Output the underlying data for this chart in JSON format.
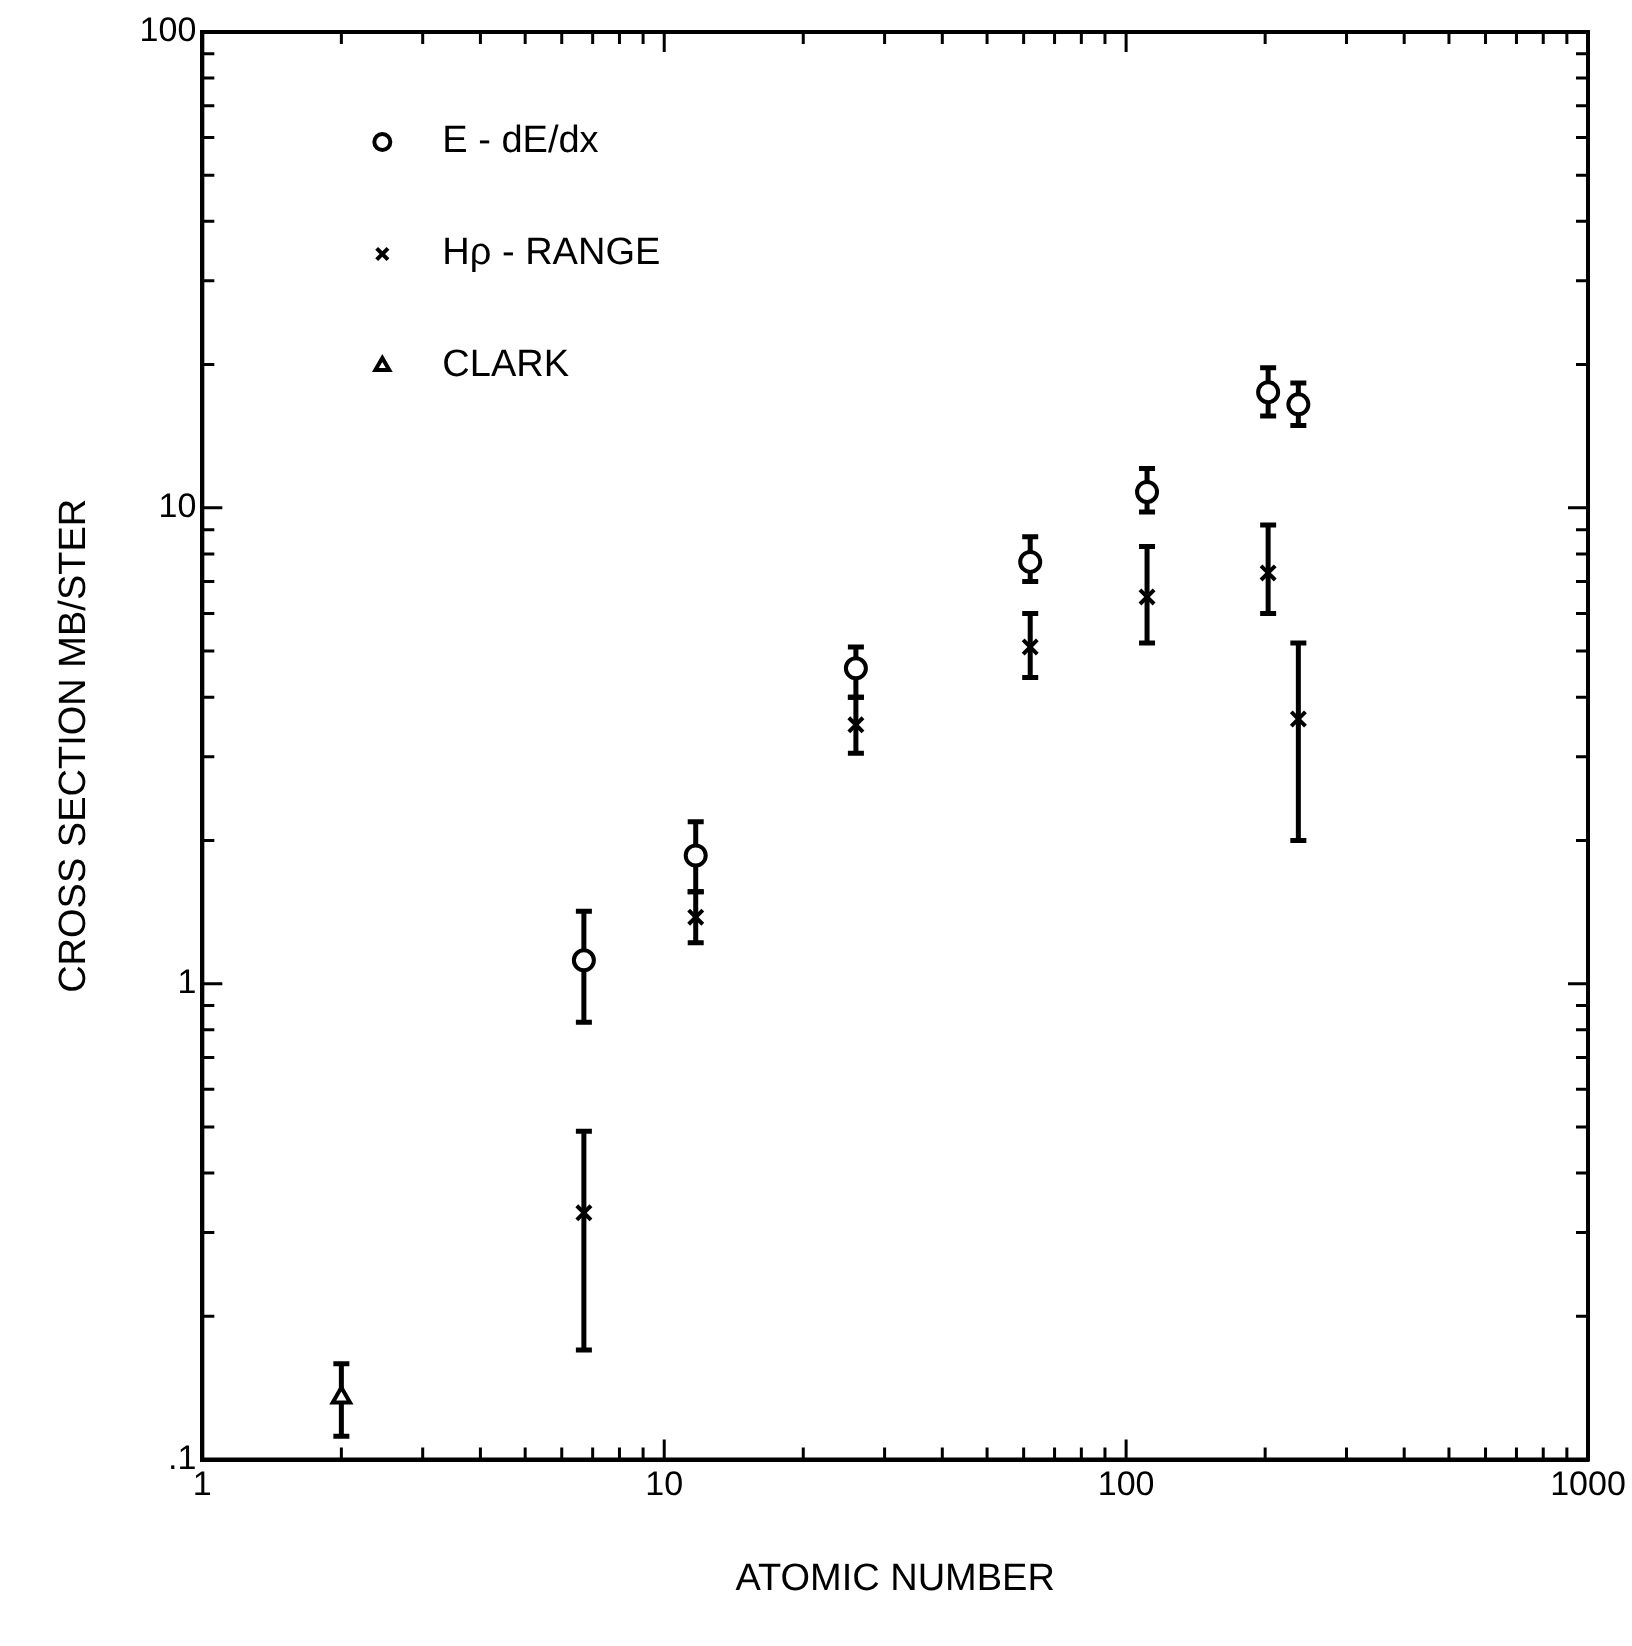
{
  "chart_data": {
    "type": "scatter",
    "xlabel": "ATOMIC NUMBER",
    "ylabel": "CROSS SECTION MB/STER",
    "log": "xy",
    "legend": "top left",
    "xlim": [
      1,
      1000
    ],
    "ylim": [
      0.1,
      100
    ],
    "xticks": [
      1,
      {
        "value": 2,
        "label": null
      },
      {
        "value": 3,
        "label": null
      },
      {
        "value": 4,
        "label": null
      },
      {
        "value": 5,
        "label": null
      },
      {
        "value": 6,
        "label": null
      },
      {
        "value": 7,
        "label": null
      },
      {
        "value": 8,
        "label": null
      },
      {
        "value": 9,
        "label": null
      },
      10,
      {
        "value": 20,
        "label": null
      },
      {
        "value": 30,
        "label": null
      },
      {
        "value": 40,
        "label": null
      },
      {
        "value": 50,
        "label": null
      },
      {
        "value": 60,
        "label": null
      },
      {
        "value": 70,
        "label": null
      },
      {
        "value": 80,
        "label": null
      },
      {
        "value": 90,
        "label": null
      },
      100,
      {
        "value": 200,
        "label": null
      },
      {
        "value": 300,
        "label": null
      },
      {
        "value": 400,
        "label": null
      },
      {
        "value": 500,
        "label": null
      },
      {
        "value": 600,
        "label": null
      },
      {
        "value": 700,
        "label": null
      },
      {
        "value": 800,
        "label": null
      },
      {
        "value": 900,
        "label": null
      },
      1000
    ],
    "yticks": [
      {
        "value": 0.1,
        "label": ".1"
      },
      {
        "value": 0.2,
        "label": null
      },
      {
        "value": 0.3,
        "label": null
      },
      {
        "value": 0.4,
        "label": null
      },
      {
        "value": 0.5,
        "label": null
      },
      {
        "value": 0.6,
        "label": null
      },
      {
        "value": 0.7,
        "label": null
      },
      {
        "value": 0.8,
        "label": null
      },
      {
        "value": 0.9,
        "label": null
      },
      1,
      {
        "value": 2,
        "label": null
      },
      {
        "value": 3,
        "label": null
      },
      {
        "value": 4,
        "label": null
      },
      {
        "value": 5,
        "label": null
      },
      {
        "value": 6,
        "label": null
      },
      {
        "value": 7,
        "label": null
      },
      {
        "value": 8,
        "label": null
      },
      {
        "value": 9,
        "label": null
      },
      10,
      {
        "value": 20,
        "label": null
      },
      {
        "value": 30,
        "label": null
      },
      {
        "value": 40,
        "label": null
      },
      {
        "value": 50,
        "label": null
      },
      {
        "value": 60,
        "label": null
      },
      {
        "value": 70,
        "label": null
      },
      {
        "value": 80,
        "label": null
      },
      {
        "value": 90,
        "label": null
      },
      100
    ],
    "series": [
      {
        "name": "E - dE/dx",
        "color": "#000000",
        "marker": "circle",
        "x": [
          6.7,
          11.7,
          26,
          62,
          111,
          203,
          236
        ],
        "values": [
          1.12,
          1.86,
          4.6,
          7.7,
          10.8,
          17.5,
          16.5
        ],
        "errors": [
          [
            0.83,
            1.42
          ],
          [
            1.56,
            2.19
          ],
          [
            4.0,
            5.1
          ],
          [
            7.0,
            8.7
          ],
          [
            9.8,
            12.1
          ],
          [
            15.6,
            19.7
          ],
          [
            14.9,
            18.3
          ]
        ]
      },
      {
        "name": "Hρ - RANGE",
        "color": "#000000",
        "marker": "cross",
        "x": [
          6.7,
          11.7,
          26,
          62,
          111,
          203,
          236
        ],
        "values": [
          0.33,
          1.38,
          3.5,
          5.1,
          6.5,
          7.3,
          3.6
        ],
        "errors": [
          [
            0.17,
            0.49
          ],
          [
            1.22,
            1.56
          ],
          [
            3.05,
            4.0
          ],
          [
            4.4,
            6.0
          ],
          [
            5.2,
            8.3
          ],
          [
            6.0,
            9.2
          ],
          [
            2.0,
            5.2
          ]
        ]
      },
      {
        "name": "CLARK",
        "color": "#000000",
        "marker": "triangle",
        "x": [
          2
        ],
        "values": [
          0.135
        ],
        "errors": [
          [
            0.112,
            0.159
          ]
        ]
      }
    ]
  }
}
